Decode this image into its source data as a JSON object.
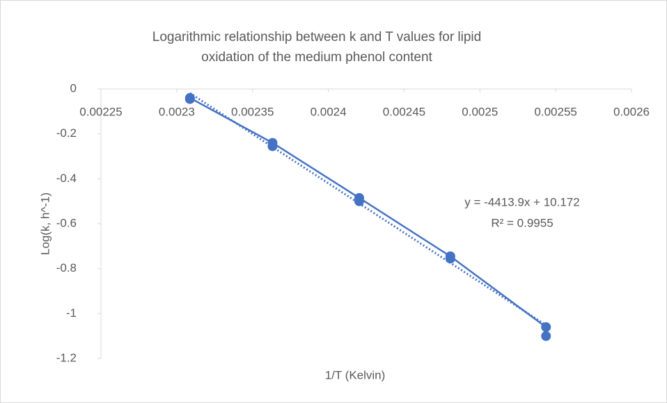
{
  "chart_data": {
    "type": "scatter",
    "title": [
      "Logarithmic relationship between k and T values for lipid",
      "oxidation of the medium phenol content"
    ],
    "x_label": "1/T (Kelvin)",
    "y_label": "Log(k, h^-1)",
    "x": [
      0.0023087,
      0.0023632,
      0.0024204,
      0.0024805,
      0.0025436
    ],
    "series": [
      {
        "color": "#4472c4",
        "line": true,
        "values": [
          -0.04,
          -0.24,
          -0.485,
          -0.745,
          -1.06
        ]
      },
      {
        "color": "#4472c4",
        "line": false,
        "values": [
          -0.045,
          -0.255,
          -0.5,
          -0.755,
          -1.1
        ]
      }
    ],
    "trendline": {
      "style": "dotted",
      "color": "#4472c4"
    },
    "annotations": [
      "y = -4413.9x + 10.172",
      "R² = 0.9955"
    ],
    "xlim": [
      0.00225,
      0.0026
    ],
    "xticks": [
      0.00225,
      0.0023,
      0.00235,
      0.0024,
      0.00245,
      0.0025,
      0.00255,
      0.0026
    ],
    "ylim": [
      -1.2,
      0
    ],
    "yticks": [
      -1.2,
      -1,
      -0.8,
      -0.6,
      -0.4,
      -0.2,
      0
    ],
    "grid": false
  }
}
